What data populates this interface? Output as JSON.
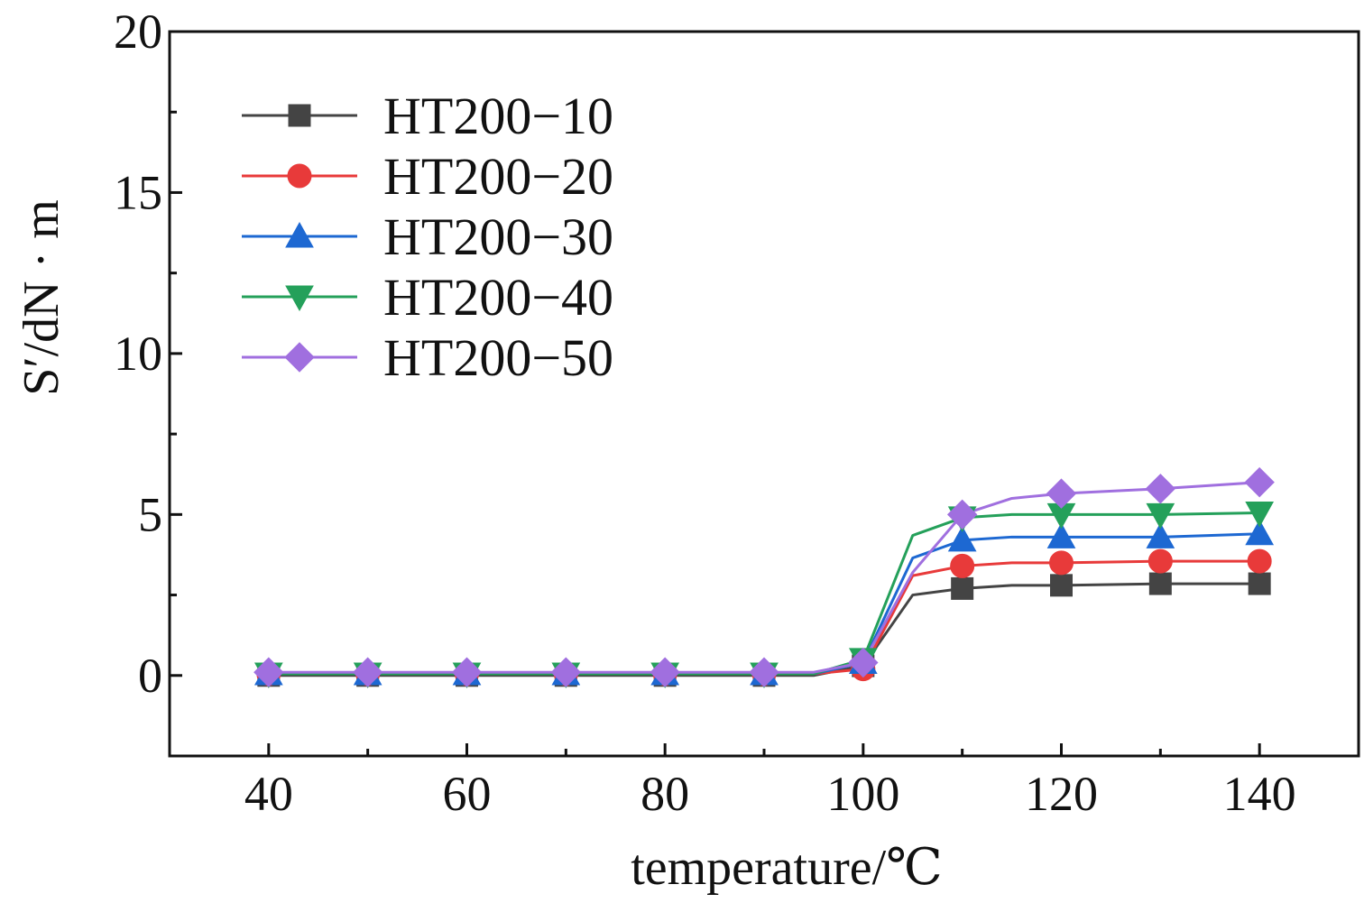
{
  "chart_data": {
    "type": "line",
    "title": "",
    "xlabel": "temperature/℃",
    "ylabel": "S′/dN · m",
    "xlim": [
      30,
      150
    ],
    "ylim": [
      -2.5,
      20
    ],
    "x_ticks": [
      40,
      60,
      80,
      100,
      120,
      140
    ],
    "x_tick_labels": [
      "40",
      "60",
      "80",
      "100",
      "120",
      "140"
    ],
    "x_minor_ticks": [
      50,
      70,
      90,
      110,
      130
    ],
    "y_ticks": [
      0,
      5,
      10,
      15,
      20
    ],
    "y_tick_labels": [
      "0",
      "5",
      "10",
      "15",
      "20"
    ],
    "y_minor_ticks": [
      2.5,
      7.5,
      12.5,
      17.5
    ],
    "grid": false,
    "legend_position": "top-left",
    "x": [
      40,
      50,
      60,
      70,
      80,
      90,
      95,
      100,
      105,
      110,
      115,
      120,
      130,
      140
    ],
    "marker_x": [
      40,
      50,
      60,
      70,
      80,
      90,
      100,
      110,
      120,
      130,
      140
    ],
    "series": [
      {
        "name": "HT200−10",
        "color": "#444444",
        "marker": "square",
        "values": [
          0.0,
          0.0,
          0.0,
          0.0,
          0.0,
          0.0,
          0.0,
          0.3,
          2.5,
          2.7,
          2.8,
          2.8,
          2.85,
          2.85
        ]
      },
      {
        "name": "HT200−20",
        "color": "#e83a3a",
        "marker": "circle",
        "values": [
          0.05,
          0.05,
          0.05,
          0.05,
          0.05,
          0.05,
          0.05,
          0.2,
          3.1,
          3.4,
          3.5,
          3.5,
          3.55,
          3.55
        ]
      },
      {
        "name": "HT200−30",
        "color": "#1d68d2",
        "marker": "triangle-up",
        "values": [
          0.05,
          0.05,
          0.05,
          0.05,
          0.05,
          0.05,
          0.05,
          0.4,
          3.65,
          4.2,
          4.3,
          4.3,
          4.3,
          4.4
        ]
      },
      {
        "name": "HT200−40",
        "color": "#24a05a",
        "marker": "triangle-down",
        "values": [
          0.05,
          0.05,
          0.05,
          0.05,
          0.05,
          0.05,
          0.05,
          0.5,
          4.35,
          4.9,
          5.0,
          5.0,
          5.0,
          5.05
        ]
      },
      {
        "name": "HT200−50",
        "color": "#a06fdf",
        "marker": "diamond",
        "values": [
          0.1,
          0.1,
          0.1,
          0.1,
          0.1,
          0.1,
          0.1,
          0.4,
          3.2,
          5.0,
          5.5,
          5.65,
          5.8,
          6.0
        ]
      }
    ]
  }
}
